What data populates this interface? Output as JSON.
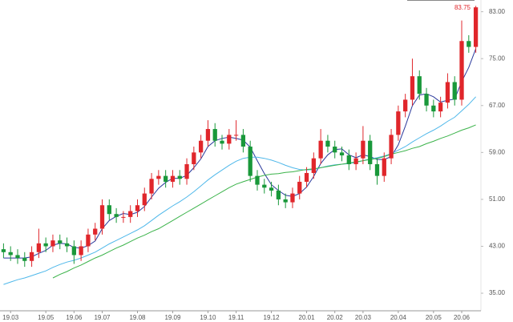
{
  "chart_data": {
    "type": "candlestick",
    "categories": [
      null,
      "19.03",
      null,
      null,
      null,
      null,
      "19.05",
      null,
      null,
      null,
      "19.06",
      null,
      null,
      null,
      "19.07",
      null,
      null,
      null,
      null,
      "19.08",
      null,
      null,
      null,
      null,
      "19.09",
      null,
      null,
      null,
      null,
      "19.10",
      null,
      null,
      null,
      "19.11",
      null,
      null,
      null,
      null,
      "19.12",
      null,
      null,
      null,
      null,
      "20.01",
      null,
      null,
      null,
      "20.02",
      null,
      null,
      null,
      "20.03",
      null,
      null,
      null,
      null,
      "20.04",
      null,
      null,
      null,
      null,
      "20.05",
      null,
      null,
      null,
      "20.06",
      null,
      null
    ],
    "open": [
      42.5,
      42,
      41.5,
      41,
      40.5,
      42,
      43.5,
      43,
      44,
      43.5,
      43,
      41.5,
      43,
      45,
      46,
      50,
      48.5,
      48,
      48,
      49,
      50,
      52,
      54.5,
      55,
      54,
      55,
      54.5,
      57,
      59,
      61,
      63,
      61,
      60.5,
      62,
      62,
      60,
      55,
      53.5,
      53,
      52.5,
      51,
      50.5,
      52,
      54,
      55.5,
      58,
      61,
      60,
      59,
      58.5,
      57,
      58,
      61,
      57,
      55,
      58,
      62,
      66,
      68,
      72,
      69,
      67,
      66,
      67.5,
      71,
      68,
      78,
      77
    ],
    "high": [
      43.5,
      43,
      42.5,
      42,
      43,
      46,
      44.5,
      45,
      45,
      44.5,
      44,
      44,
      46,
      47,
      51,
      51,
      49.5,
      49,
      50,
      51,
      53,
      55.5,
      56,
      56,
      56,
      56,
      58,
      60,
      62,
      64.5,
      64,
      62,
      63,
      64.5,
      63,
      61,
      56,
      54.5,
      54,
      53.5,
      52,
      53,
      55,
      56.5,
      59,
      63,
      62,
      61,
      60,
      59.5,
      59,
      63.5,
      62,
      58,
      59,
      63,
      67,
      69,
      75,
      73,
      70,
      68,
      68.5,
      72.5,
      72,
      81.5,
      79,
      84
    ],
    "low": [
      41,
      40.5,
      40,
      39.5,
      39.5,
      41,
      42,
      42,
      42.5,
      42,
      40,
      40.5,
      42,
      44,
      45,
      47.5,
      47,
      47,
      47,
      48,
      49,
      51,
      53.5,
      53,
      53,
      53.5,
      53.5,
      56,
      58,
      60,
      60,
      59.5,
      59.5,
      61,
      59,
      54,
      52.5,
      52,
      51.5,
      50,
      49.5,
      49.5,
      51,
      53,
      54.5,
      57,
      59,
      58,
      57.5,
      56,
      56,
      57,
      56,
      53.5,
      54,
      57,
      61,
      65,
      67,
      68,
      66,
      65,
      65,
      66.5,
      67,
      67,
      76,
      76
    ],
    "close": [
      42,
      41.5,
      41,
      40.5,
      42,
      43.5,
      43,
      44,
      43.5,
      43,
      41.5,
      43,
      45,
      46,
      50,
      48.5,
      48,
      48,
      49,
      50,
      52,
      54.5,
      55,
      54,
      55,
      54.5,
      57,
      59,
      61,
      63,
      61,
      60.5,
      62,
      62,
      60,
      55,
      53.5,
      53,
      52.5,
      51,
      50.5,
      52,
      54,
      55.5,
      58,
      61,
      60,
      59,
      58.5,
      57,
      58,
      61,
      57,
      55,
      58,
      62,
      66,
      68,
      72,
      69,
      67,
      66,
      67.5,
      71,
      68,
      78,
      77,
      83.75
    ],
    "up_color": "#e0262b",
    "down_color": "#19983a",
    "series": [
      {
        "color": "#2b3a9c",
        "values": [
          41,
          41,
          41,
          41,
          41.2,
          41.8,
          42.3,
          43.2,
          43.5,
          43.4,
          42.8,
          42.7,
          43.1,
          43.9,
          46,
          47.4,
          48.1,
          48.6,
          48.4,
          48.8,
          49.8,
          51.4,
          52.9,
          53.9,
          54.6,
          54.6,
          55.1,
          56.4,
          57.9,
          60,
          61,
          61.4,
          61.6,
          61.4,
          61.1,
          59.9,
          57.6,
          55.4,
          53.5,
          52.5,
          51.7,
          51.5,
          52,
          53.1,
          54.9,
          57.1,
          58.6,
          59.5,
          59.6,
          58.6,
          58.1,
          58.6,
          58.3,
          57.8,
          57.8,
          58.3,
          60.3,
          63.5,
          67,
          68.8,
          69,
          68.5,
          67.6,
          67.9,
          68.1,
          71.1,
          73.5,
          76.7
        ]
      },
      {
        "color": "#4fb8ea",
        "values": [
          36.5,
          36.9,
          37.3,
          37.6,
          38,
          38.4,
          38.8,
          39.4,
          39.9,
          40.3,
          40.6,
          41,
          41.5,
          42,
          42.7,
          43.4,
          44,
          44.6,
          45.2,
          45.8,
          46.5,
          47.4,
          48.3,
          49.1,
          49.9,
          50.6,
          51.4,
          52.3,
          53.3,
          54.3,
          55.2,
          56,
          56.8,
          57.5,
          58,
          58.2,
          58.2,
          58,
          57.7,
          57.3,
          56.8,
          56.4,
          56.1,
          56,
          56.1,
          56.4,
          56.7,
          56.9,
          57,
          57.1,
          57.3,
          57.6,
          57.9,
          58.1,
          58.4,
          58.8,
          59.4,
          60,
          60.8,
          61.5,
          62.2,
          62.8,
          63.5,
          64.3,
          65,
          66.1,
          67.2,
          68.5
        ]
      },
      {
        "color": "#3bb34a",
        "values": [
          null,
          null,
          null,
          null,
          null,
          null,
          null,
          37.6,
          38.2,
          38.7,
          39.3,
          39.8,
          40.4,
          41,
          41.5,
          42.1,
          42.7,
          43.2,
          43.8,
          44.4,
          44.9,
          45.5,
          46,
          46.7,
          47.4,
          48.1,
          48.8,
          49.5,
          50.2,
          50.9,
          51.6,
          52.3,
          53,
          53.6,
          54,
          54.4,
          54.8,
          55.1,
          55.3,
          55.4,
          55.6,
          55.7,
          55.9,
          56.1,
          56.2,
          56.4,
          56.6,
          56.8,
          57,
          57.2,
          57.4,
          57.6,
          57.8,
          58,
          58.3,
          58.7,
          59,
          59.3,
          59.7,
          60,
          60.5,
          60.9,
          61.4,
          61.8,
          62.3,
          62.8,
          63.2,
          63.7
        ]
      }
    ],
    "ylim": [
      32,
      85
    ],
    "yticks": [
      {
        "value": 35,
        "label": "35.00"
      },
      {
        "value": 43,
        "label": "43.00"
      },
      {
        "value": 51,
        "label": "51.00"
      },
      {
        "value": 59,
        "label": "59.00"
      },
      {
        "value": 67,
        "label": "67.00"
      },
      {
        "value": 75,
        "label": "75.00"
      },
      {
        "value": 83,
        "label": "83.00"
      }
    ],
    "annotations": [
      "83.75"
    ]
  }
}
